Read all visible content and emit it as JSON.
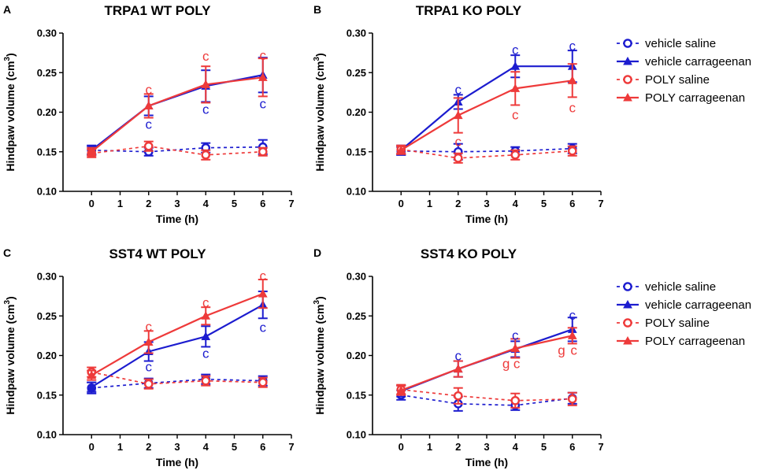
{
  "figure": {
    "colors": {
      "vehicle": "#1c1ccf",
      "poly": "#ee3a3a",
      "axis": "#000000"
    },
    "x_axis_label": "Time (h)",
    "y_axis_label": "Hindpaw volume (cm",
    "y_axis_unit_sup": "3",
    "y_axis_label_close": ")",
    "x_tick_labels": [
      "0",
      "1",
      "2",
      "3",
      "4",
      "5",
      "6",
      "7"
    ],
    "y_tick_labels": [
      "0.10",
      "0.15",
      "0.20",
      "0.25",
      "0.30"
    ],
    "legend": [
      {
        "label": "vehicle saline",
        "series": "vehicle saline"
      },
      {
        "label": "vehicle carrageenan",
        "series": "vehicle carrageenan"
      },
      {
        "label": "POLY saline",
        "series": "POLY saline"
      },
      {
        "label": "POLY carrageenan",
        "series": "POLY carrageenan"
      }
    ]
  },
  "chart_data": [
    {
      "panel": "A",
      "type": "line",
      "title": "TRPA1 WT POLY",
      "xlabel": "Time (h)",
      "ylabel": "Hindpaw volume (cm3)",
      "xlim": [
        -1,
        7
      ],
      "ylim": [
        0.1,
        0.3
      ],
      "x": [
        0,
        2,
        4,
        6
      ],
      "series": [
        {
          "name": "vehicle saline",
          "values": [
            0.152,
            0.15,
            0.155,
            0.156
          ],
          "errors": [
            0.005,
            0.005,
            0.006,
            0.009
          ]
        },
        {
          "name": "vehicle carrageenan",
          "values": [
            0.152,
            0.208,
            0.233,
            0.247
          ],
          "errors": [
            0.006,
            0.012,
            0.02,
            0.022
          ]
        },
        {
          "name": "POLY saline",
          "values": [
            0.148,
            0.157,
            0.146,
            0.15
          ],
          "errors": [
            0.005,
            0.006,
            0.006,
            0.005
          ]
        },
        {
          "name": "POLY carrageenan",
          "values": [
            0.15,
            0.208,
            0.235,
            0.244
          ],
          "errors": [
            0.005,
            0.015,
            0.023,
            0.024
          ]
        }
      ],
      "annotations": [
        {
          "text": "c",
          "x": 2,
          "y": 0.229,
          "color": "poly"
        },
        {
          "text": "c",
          "x": 2,
          "y": 0.185,
          "color": "vehicle"
        },
        {
          "text": "c",
          "x": 4,
          "y": 0.271,
          "color": "poly"
        },
        {
          "text": "c",
          "x": 4,
          "y": 0.204,
          "color": "vehicle"
        },
        {
          "text": "c",
          "x": 6,
          "y": 0.272,
          "color": "poly"
        },
        {
          "text": "c",
          "x": 6,
          "y": 0.211,
          "color": "vehicle"
        }
      ]
    },
    {
      "panel": "B",
      "type": "line",
      "title": "TRPA1 KO POLY",
      "xlabel": "Time (h)",
      "ylabel": "Hindpaw volume (cm3)",
      "xlim": [
        -1,
        7
      ],
      "ylim": [
        0.1,
        0.3
      ],
      "x": [
        0,
        2,
        4,
        6
      ],
      "series": [
        {
          "name": "vehicle saline",
          "values": [
            0.151,
            0.15,
            0.151,
            0.154
          ],
          "errors": [
            0.005,
            0.01,
            0.005,
            0.006
          ]
        },
        {
          "name": "vehicle carrageenan",
          "values": [
            0.152,
            0.213,
            0.258,
            0.258
          ],
          "errors": [
            0.006,
            0.009,
            0.014,
            0.02
          ]
        },
        {
          "name": "POLY saline",
          "values": [
            0.153,
            0.142,
            0.146,
            0.151
          ],
          "errors": [
            0.005,
            0.006,
            0.006,
            0.006
          ]
        },
        {
          "name": "POLY carrageenan",
          "values": [
            0.152,
            0.196,
            0.23,
            0.24
          ],
          "errors": [
            0.005,
            0.022,
            0.021,
            0.021
          ]
        }
      ],
      "annotations": [
        {
          "text": "c",
          "x": 2,
          "y": 0.229,
          "color": "vehicle"
        },
        {
          "text": "c",
          "x": 2,
          "y": 0.163,
          "color": "poly"
        },
        {
          "text": "c",
          "x": 4,
          "y": 0.279,
          "color": "vehicle"
        },
        {
          "text": "c",
          "x": 4,
          "y": 0.197,
          "color": "poly"
        },
        {
          "text": "c",
          "x": 6,
          "y": 0.284,
          "color": "vehicle"
        },
        {
          "text": "c",
          "x": 6,
          "y": 0.206,
          "color": "poly"
        }
      ]
    },
    {
      "panel": "C",
      "type": "line",
      "title": "SST4 WT POLY",
      "xlabel": "Time (h)",
      "ylabel": "Hindpaw volume (cm3)",
      "xlim": [
        -1,
        7
      ],
      "ylim": [
        0.1,
        0.3
      ],
      "x": [
        0,
        2,
        4,
        6
      ],
      "series": [
        {
          "name": "vehicle saline",
          "values": [
            0.159,
            0.165,
            0.17,
            0.168
          ],
          "errors": [
            0.007,
            0.006,
            0.006,
            0.006
          ]
        },
        {
          "name": "vehicle carrageenan",
          "values": [
            0.16,
            0.205,
            0.224,
            0.264
          ],
          "errors": [
            0.006,
            0.012,
            0.013,
            0.017
          ]
        },
        {
          "name": "POLY saline",
          "values": [
            0.179,
            0.164,
            0.168,
            0.166
          ],
          "errors": [
            0.006,
            0.006,
            0.006,
            0.006
          ]
        },
        {
          "name": "POLY carrageenan",
          "values": [
            0.175,
            0.217,
            0.25,
            0.278
          ],
          "errors": [
            0.006,
            0.014,
            0.011,
            0.018
          ]
        }
      ],
      "annotations": [
        {
          "text": "c",
          "x": 2,
          "y": 0.237,
          "color": "poly"
        },
        {
          "text": "c",
          "x": 2,
          "y": 0.186,
          "color": "vehicle"
        },
        {
          "text": "c",
          "x": 4,
          "y": 0.267,
          "color": "poly"
        },
        {
          "text": "c",
          "x": 4,
          "y": 0.203,
          "color": "vehicle"
        },
        {
          "text": "c",
          "x": 6,
          "y": 0.301,
          "color": "poly"
        },
        {
          "text": "c",
          "x": 6,
          "y": 0.236,
          "color": "vehicle"
        }
      ]
    },
    {
      "panel": "D",
      "type": "line",
      "title": "SST4 KO POLY",
      "xlabel": "Time (h)",
      "ylabel": "Hindpaw volume (cm3)",
      "xlim": [
        -1,
        7
      ],
      "ylim": [
        0.1,
        0.3
      ],
      "x": [
        0,
        2,
        4,
        6
      ],
      "series": [
        {
          "name": "vehicle saline",
          "values": [
            0.15,
            0.139,
            0.137,
            0.146
          ],
          "errors": [
            0.006,
            0.009,
            0.006,
            0.007
          ]
        },
        {
          "name": "vehicle carrageenan",
          "values": [
            0.155,
            0.183,
            0.208,
            0.233
          ],
          "errors": [
            0.007,
            0.01,
            0.01,
            0.015
          ]
        },
        {
          "name": "POLY saline",
          "values": [
            0.157,
            0.149,
            0.143,
            0.145
          ],
          "errors": [
            0.006,
            0.01,
            0.009,
            0.008
          ]
        },
        {
          "name": "POLY carrageenan",
          "values": [
            0.156,
            0.183,
            0.209,
            0.225
          ],
          "errors": [
            0.006,
            0.01,
            0.012,
            0.01
          ]
        }
      ],
      "annotations": [
        {
          "text": "c",
          "x": 2,
          "y": 0.2,
          "color": "vehicle"
        },
        {
          "text": "c",
          "x": 4,
          "y": 0.226,
          "color": "vehicle"
        },
        {
          "text": "g",
          "x": 4,
          "y": 0.19,
          "color": "poly",
          "dx": -0.32
        },
        {
          "text": "c",
          "x": 4,
          "y": 0.19,
          "color": "poly",
          "dx": 0.05
        },
        {
          "text": "c",
          "x": 6,
          "y": 0.251,
          "color": "vehicle"
        },
        {
          "text": "g",
          "x": 6,
          "y": 0.207,
          "color": "poly",
          "dx": -0.38
        },
        {
          "text": "c",
          "x": 6,
          "y": 0.207,
          "color": "poly",
          "dx": 0.05
        }
      ]
    }
  ]
}
